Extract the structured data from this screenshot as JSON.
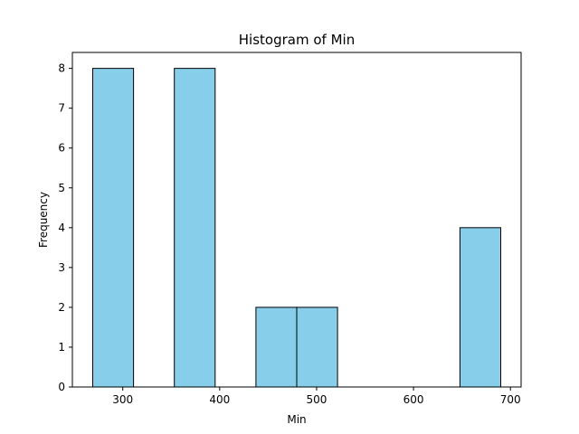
{
  "chart_data": {
    "type": "bar",
    "title": "Histogram of Min",
    "xlabel": "Min",
    "ylabel": "Frequency",
    "bins": [
      {
        "x0": 269,
        "x1": 311.1,
        "count": 8
      },
      {
        "x0": 311.1,
        "x1": 353.2,
        "count": 0
      },
      {
        "x0": 353.2,
        "x1": 395.3,
        "count": 8
      },
      {
        "x0": 395.3,
        "x1": 437.4,
        "count": 0
      },
      {
        "x0": 437.4,
        "x1": 479.5,
        "count": 2
      },
      {
        "x0": 479.5,
        "x1": 521.6,
        "count": 2
      },
      {
        "x0": 521.6,
        "x1": 563.7,
        "count": 0
      },
      {
        "x0": 563.7,
        "x1": 605.8,
        "count": 0
      },
      {
        "x0": 605.8,
        "x1": 647.9,
        "count": 0
      },
      {
        "x0": 647.9,
        "x1": 690,
        "count": 4
      }
    ],
    "xlim": [
      248,
      711
    ],
    "ylim": [
      0,
      8.4
    ],
    "xticks": [
      300,
      400,
      500,
      600,
      700
    ],
    "yticks": [
      0,
      1,
      2,
      3,
      4,
      5,
      6,
      7,
      8
    ],
    "bar_color": "#87ceeb",
    "edge_color": "#000000",
    "grid": false,
    "legend": "none"
  }
}
